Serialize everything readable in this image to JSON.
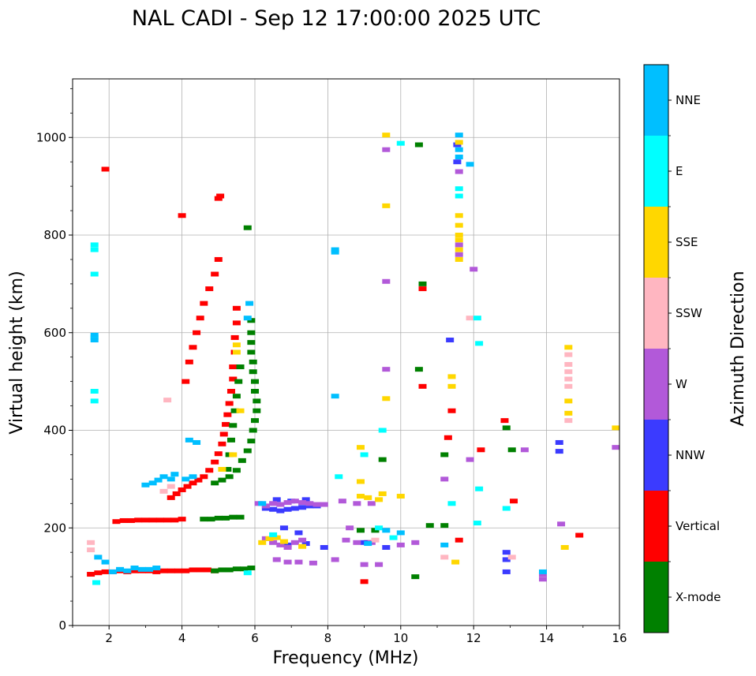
{
  "chart_data": {
    "type": "scatter",
    "title": "NAL CADI - Sep 12 17:00:00 2025 UTC",
    "xlabel": "Frequency (MHz)",
    "ylabel": "Virtual height (km)",
    "xlim": [
      1,
      16
    ],
    "ylim": [
      0,
      1120
    ],
    "xticks": [
      2,
      4,
      6,
      8,
      10,
      12,
      14,
      16
    ],
    "yticks": [
      0,
      200,
      400,
      600,
      800,
      1000
    ],
    "grid": true,
    "colorbar": {
      "label": "Azimuth Direction",
      "categories": [
        {
          "name": "X-mode",
          "color": "#008000"
        },
        {
          "name": "Vertical",
          "color": "#ff0000"
        },
        {
          "name": "NNW",
          "color": "#3b3bff"
        },
        {
          "name": "W",
          "color": "#b259d9"
        },
        {
          "name": "SSW",
          "color": "#ffb6c1"
        },
        {
          "name": "SSE",
          "color": "#ffd700"
        },
        {
          "name": "E",
          "color": "#00ffff"
        },
        {
          "name": "NNE",
          "color": "#00bfff"
        }
      ]
    },
    "series": [
      {
        "name": "Vertical",
        "points": [
          [
            1.5,
            105
          ],
          [
            1.7,
            108
          ],
          [
            1.9,
            110
          ],
          [
            2.1,
            110
          ],
          [
            2.3,
            112
          ],
          [
            2.5,
            110
          ],
          [
            2.7,
            112
          ],
          [
            2.9,
            112
          ],
          [
            3.1,
            112
          ],
          [
            3.3,
            110
          ],
          [
            3.5,
            112
          ],
          [
            3.7,
            112
          ],
          [
            3.9,
            112
          ],
          [
            4.1,
            112
          ],
          [
            4.3,
            114
          ],
          [
            4.5,
            114
          ],
          [
            4.7,
            114
          ],
          [
            4.9,
            112
          ],
          [
            2.2,
            213
          ],
          [
            2.4,
            215
          ],
          [
            2.6,
            215
          ],
          [
            2.8,
            216
          ],
          [
            3.0,
            216
          ],
          [
            3.2,
            216
          ],
          [
            3.4,
            216
          ],
          [
            3.6,
            216
          ],
          [
            3.8,
            216
          ],
          [
            4.0,
            218
          ],
          [
            3.7,
            262
          ],
          [
            3.85,
            270
          ],
          [
            4.0,
            278
          ],
          [
            4.15,
            285
          ],
          [
            4.3,
            292
          ],
          [
            4.45,
            298
          ],
          [
            4.6,
            305
          ],
          [
            4.75,
            318
          ],
          [
            4.9,
            335
          ],
          [
            5.0,
            352
          ],
          [
            5.1,
            372
          ],
          [
            5.15,
            392
          ],
          [
            5.2,
            412
          ],
          [
            5.25,
            432
          ],
          [
            5.3,
            455
          ],
          [
            5.35,
            480
          ],
          [
            5.4,
            505
          ],
          [
            5.4,
            530
          ],
          [
            5.45,
            560
          ],
          [
            5.45,
            590
          ],
          [
            5.5,
            620
          ],
          [
            5.5,
            650
          ],
          [
            4.1,
            500
          ],
          [
            4.2,
            540
          ],
          [
            4.3,
            570
          ],
          [
            4.4,
            600
          ],
          [
            4.5,
            630
          ],
          [
            4.6,
            660
          ],
          [
            4.75,
            690
          ],
          [
            4.9,
            720
          ],
          [
            5.0,
            750
          ],
          [
            4.0,
            840
          ],
          [
            5.0,
            875
          ],
          [
            5.05,
            880
          ],
          [
            1.9,
            935
          ],
          [
            10.6,
            690
          ],
          [
            10.6,
            490
          ],
          [
            11.6,
            175
          ],
          [
            11.3,
            385
          ],
          [
            11.4,
            440
          ],
          [
            12.2,
            360
          ],
          [
            12.85,
            420
          ],
          [
            13.1,
            255
          ],
          [
            14.9,
            185
          ],
          [
            9.0,
            90
          ]
        ]
      },
      {
        "name": "X-mode",
        "points": [
          [
            4.6,
            218
          ],
          [
            4.8,
            218
          ],
          [
            5.0,
            220
          ],
          [
            5.2,
            220
          ],
          [
            5.4,
            222
          ],
          [
            5.6,
            222
          ],
          [
            4.9,
            112
          ],
          [
            5.1,
            114
          ],
          [
            5.3,
            114
          ],
          [
            5.5,
            116
          ],
          [
            5.7,
            116
          ],
          [
            5.9,
            118
          ],
          [
            4.9,
            292
          ],
          [
            5.1,
            298
          ],
          [
            5.3,
            305
          ],
          [
            5.5,
            318
          ],
          [
            5.65,
            338
          ],
          [
            5.8,
            358
          ],
          [
            5.9,
            378
          ],
          [
            5.95,
            400
          ],
          [
            6.0,
            420
          ],
          [
            6.05,
            440
          ],
          [
            6.05,
            460
          ],
          [
            6.0,
            480
          ],
          [
            6.0,
            500
          ],
          [
            5.95,
            520
          ],
          [
            5.95,
            540
          ],
          [
            5.9,
            560
          ],
          [
            5.9,
            580
          ],
          [
            5.9,
            600
          ],
          [
            5.9,
            625
          ],
          [
            5.25,
            320
          ],
          [
            5.3,
            350
          ],
          [
            5.35,
            380
          ],
          [
            5.4,
            410
          ],
          [
            5.45,
            440
          ],
          [
            5.5,
            470
          ],
          [
            5.55,
            500
          ],
          [
            5.6,
            530
          ],
          [
            5.8,
            815
          ],
          [
            8.9,
            195
          ],
          [
            9.3,
            195
          ],
          [
            9.5,
            340
          ],
          [
            10.5,
            985
          ],
          [
            10.5,
            525
          ],
          [
            10.6,
            700
          ],
          [
            10.8,
            205
          ],
          [
            11.2,
            350
          ],
          [
            11.2,
            205
          ],
          [
            12.9,
            405
          ],
          [
            13.05,
            360
          ],
          [
            10.4,
            100
          ],
          [
            9.1,
            170
          ]
        ]
      },
      {
        "name": "NNW",
        "points": [
          [
            6.3,
            240
          ],
          [
            6.5,
            238
          ],
          [
            6.7,
            235
          ],
          [
            6.9,
            238
          ],
          [
            7.1,
            240
          ],
          [
            7.3,
            242
          ],
          [
            7.5,
            245
          ],
          [
            7.7,
            245
          ],
          [
            6.6,
            258
          ],
          [
            7.0,
            255
          ],
          [
            7.4,
            258
          ],
          [
            6.8,
            200
          ],
          [
            7.2,
            190
          ],
          [
            6.9,
            165
          ],
          [
            7.4,
            168
          ],
          [
            7.9,
            160
          ],
          [
            9.0,
            170
          ],
          [
            9.6,
            160
          ],
          [
            11.55,
            950
          ],
          [
            11.55,
            985
          ],
          [
            12.9,
            110
          ],
          [
            12.9,
            135
          ],
          [
            12.9,
            150
          ],
          [
            14.35,
            375
          ],
          [
            14.35,
            357
          ],
          [
            11.35,
            585
          ]
        ]
      },
      {
        "name": "W",
        "points": [
          [
            6.1,
            250
          ],
          [
            6.3,
            245
          ],
          [
            6.5,
            250
          ],
          [
            6.7,
            248
          ],
          [
            6.9,
            252
          ],
          [
            7.1,
            255
          ],
          [
            7.3,
            252
          ],
          [
            7.5,
            250
          ],
          [
            7.7,
            248
          ],
          [
            7.9,
            248
          ],
          [
            6.3,
            178
          ],
          [
            6.5,
            170
          ],
          [
            6.7,
            165
          ],
          [
            6.9,
            160
          ],
          [
            7.1,
            170
          ],
          [
            7.3,
            175
          ],
          [
            6.6,
            135
          ],
          [
            6.9,
            130
          ],
          [
            7.2,
            130
          ],
          [
            7.6,
            128
          ],
          [
            8.4,
            255
          ],
          [
            8.8,
            250
          ],
          [
            9.2,
            250
          ],
          [
            8.5,
            175
          ],
          [
            8.8,
            170
          ],
          [
            9.2,
            170
          ],
          [
            8.6,
            200
          ],
          [
            9.0,
            125
          ],
          [
            9.4,
            125
          ],
          [
            8.2,
            135
          ],
          [
            9.6,
            975
          ],
          [
            9.6,
            525
          ],
          [
            9.6,
            705
          ],
          [
            10.0,
            165
          ],
          [
            10.4,
            170
          ],
          [
            11.2,
            300
          ],
          [
            11.9,
            340
          ],
          [
            12.0,
            730
          ],
          [
            13.4,
            360
          ],
          [
            13.9,
            105
          ],
          [
            13.9,
            95
          ],
          [
            14.4,
            208
          ],
          [
            15.9,
            365
          ],
          [
            11.6,
            760
          ],
          [
            11.6,
            780
          ],
          [
            11.6,
            930
          ]
        ]
      },
      {
        "name": "SSW",
        "points": [
          [
            1.5,
            170
          ],
          [
            1.5,
            155
          ],
          [
            3.6,
            462
          ],
          [
            3.5,
            275
          ],
          [
            3.7,
            285
          ],
          [
            9.3,
            175
          ],
          [
            11.2,
            140
          ],
          [
            11.9,
            630
          ],
          [
            13.05,
            140
          ],
          [
            14.6,
            555
          ],
          [
            14.6,
            535
          ],
          [
            14.6,
            520
          ],
          [
            14.6,
            505
          ],
          [
            14.6,
            490
          ],
          [
            14.6,
            420
          ]
        ]
      },
      {
        "name": "SSE",
        "points": [
          [
            5.1,
            320
          ],
          [
            5.4,
            350
          ],
          [
            5.5,
            560
          ],
          [
            5.5,
            575
          ],
          [
            5.6,
            440
          ],
          [
            6.2,
            170
          ],
          [
            6.4,
            178
          ],
          [
            6.6,
            180
          ],
          [
            6.8,
            172
          ],
          [
            7.3,
            162
          ],
          [
            8.9,
            265
          ],
          [
            9.1,
            262
          ],
          [
            9.4,
            258
          ],
          [
            8.9,
            365
          ],
          [
            8.9,
            295
          ],
          [
            9.5,
            270
          ],
          [
            9.6,
            1005
          ],
          [
            9.6,
            860
          ],
          [
            9.6,
            465
          ],
          [
            10.0,
            265
          ],
          [
            11.5,
            130
          ],
          [
            11.4,
            490
          ],
          [
            11.4,
            510
          ],
          [
            11.6,
            750
          ],
          [
            11.6,
            770
          ],
          [
            11.6,
            790
          ],
          [
            11.6,
            800
          ],
          [
            11.6,
            820
          ],
          [
            11.6,
            840
          ],
          [
            11.6,
            990
          ],
          [
            14.6,
            570
          ],
          [
            14.6,
            460
          ],
          [
            14.6,
            435
          ],
          [
            14.5,
            160
          ],
          [
            15.9,
            405
          ]
        ]
      },
      {
        "name": "E",
        "points": [
          [
            1.6,
            780
          ],
          [
            1.6,
            770
          ],
          [
            1.6,
            720
          ],
          [
            1.6,
            590
          ],
          [
            1.6,
            480
          ],
          [
            1.6,
            460
          ],
          [
            1.65,
            88
          ],
          [
            5.8,
            108
          ],
          [
            6.5,
            186
          ],
          [
            8.3,
            305
          ],
          [
            9.0,
            350
          ],
          [
            9.5,
            400
          ],
          [
            10.0,
            988
          ],
          [
            11.6,
            880
          ],
          [
            11.6,
            895
          ],
          [
            12.1,
            630
          ],
          [
            12.15,
            578
          ],
          [
            12.15,
            280
          ],
          [
            12.1,
            210
          ],
          [
            12.9,
            240
          ],
          [
            11.4,
            250
          ],
          [
            9.4,
            200
          ],
          [
            9.8,
            180
          ]
        ]
      },
      {
        "name": "NNE",
        "points": [
          [
            1.6,
            595
          ],
          [
            1.6,
            585
          ],
          [
            1.7,
            140
          ],
          [
            1.9,
            130
          ],
          [
            2.1,
            110
          ],
          [
            2.3,
            115
          ],
          [
            2.5,
            112
          ],
          [
            2.7,
            118
          ],
          [
            2.9,
            115
          ],
          [
            3.1,
            115
          ],
          [
            3.3,
            118
          ],
          [
            3.0,
            288
          ],
          [
            3.2,
            292
          ],
          [
            3.35,
            298
          ],
          [
            3.5,
            305
          ],
          [
            3.7,
            300
          ],
          [
            3.8,
            310
          ],
          [
            4.1,
            300
          ],
          [
            4.3,
            305
          ],
          [
            4.2,
            380
          ],
          [
            4.4,
            375
          ],
          [
            5.85,
            660
          ],
          [
            5.8,
            630
          ],
          [
            6.2,
            250
          ],
          [
            8.2,
            470
          ],
          [
            8.2,
            770
          ],
          [
            8.2,
            765
          ],
          [
            9.1,
            168
          ],
          [
            9.6,
            195
          ],
          [
            10.0,
            190
          ],
          [
            11.2,
            165
          ],
          [
            11.6,
            1005
          ],
          [
            11.6,
            975
          ],
          [
            11.6,
            960
          ],
          [
            11.9,
            945
          ],
          [
            13.9,
            110
          ]
        ]
      }
    ]
  }
}
